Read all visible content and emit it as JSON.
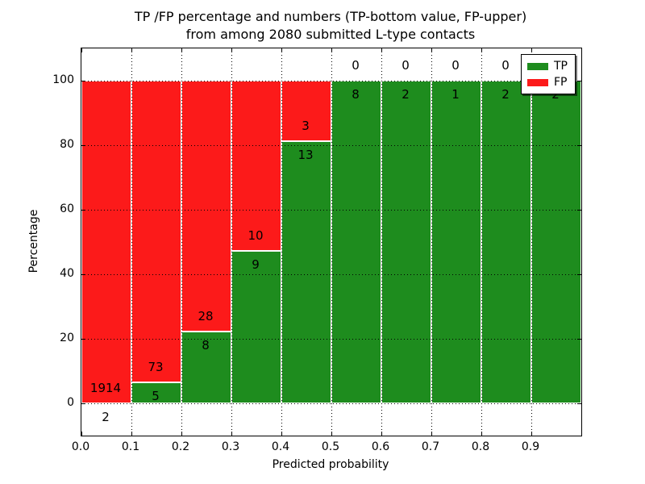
{
  "title": {
    "line1": "TP /FP percentage and numbers (TP-bottom value, FP-upper)",
    "line2": "from among 2080 submitted L-type contacts"
  },
  "axes": {
    "xlabel": "Predicted probability",
    "ylabel": "Percentage",
    "x_ticks": [
      "0.0",
      "0.1",
      "0.2",
      "0.3",
      "0.4",
      "0.5",
      "0.6",
      "0.7",
      "0.8",
      "0.9"
    ],
    "y_ticks": [
      "0",
      "20",
      "40",
      "60",
      "80",
      "100"
    ],
    "y_tick_values": [
      0,
      20,
      40,
      60,
      80,
      100
    ]
  },
  "legend": {
    "items": [
      {
        "label": "TP",
        "color": "#1e8c1e"
      },
      {
        "label": "FP",
        "color": "#fc1a1a"
      }
    ]
  },
  "colors": {
    "tp": "#1e8c1e",
    "fp": "#fc1a1a",
    "grid": "#000000",
    "background": "#ffffff"
  },
  "chart_data": {
    "type": "bar",
    "stacked": true,
    "title": "TP /FP percentage and numbers (TP-bottom value, FP-upper) from among 2080 submitted L-type contacts",
    "xlabel": "Predicted probability",
    "ylabel": "Percentage",
    "categories": [
      "0.0-0.1",
      "0.1-0.2",
      "0.2-0.3",
      "0.3-0.4",
      "0.4-0.5",
      "0.5-0.6",
      "0.6-0.7",
      "0.7-0.8",
      "0.8-0.9",
      "0.9-1.0"
    ],
    "series": [
      {
        "name": "TP",
        "counts": [
          2,
          5,
          8,
          9,
          13,
          8,
          2,
          1,
          2,
          2
        ],
        "pct": [
          0.1,
          6.4,
          22.2,
          47.4,
          81.2,
          100,
          100,
          100,
          100,
          100
        ]
      },
      {
        "name": "FP",
        "counts": [
          1914,
          73,
          28,
          10,
          3,
          0,
          0,
          0,
          0,
          0
        ],
        "pct": [
          99.9,
          93.6,
          77.8,
          52.6,
          18.8,
          0,
          0,
          0,
          0,
          0
        ]
      }
    ],
    "total_contacts": 2080,
    "xlim": [
      0.0,
      1.0
    ],
    "ylim": [
      -10,
      110
    ],
    "grid": true,
    "grid_style": "dotted",
    "legend_position": "upper right"
  }
}
